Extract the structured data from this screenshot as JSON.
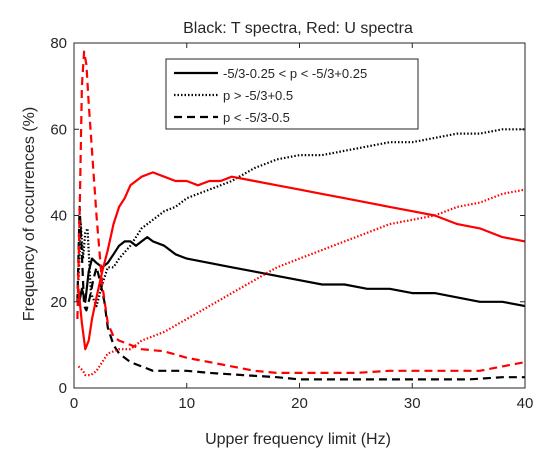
{
  "chart_data": {
    "type": "line",
    "title": "Black: T spectra, Red: U spectra",
    "xlabel": "Upper frequency limit (Hz)",
    "ylabel": "Frequency of occurrences (%)",
    "xlim": [
      0,
      40
    ],
    "ylim": [
      0,
      80
    ],
    "xticks": [
      0,
      10,
      20,
      30,
      40
    ],
    "yticks": [
      0,
      20,
      40,
      60,
      80
    ],
    "grid": false,
    "legend_position": "top-center",
    "legend": [
      {
        "label": "-5/3-0.25 < p < -5/3+0.25",
        "style": "solid"
      },
      {
        "label": "p > -5/3+0.5",
        "style": "dotted"
      },
      {
        "label": "p < -5/3-0.5",
        "style": "dashed"
      }
    ],
    "series": [
      {
        "color": "#000000",
        "style": "solid",
        "points": [
          [
            0.4,
            19
          ],
          [
            0.7,
            23
          ],
          [
            1,
            20
          ],
          [
            1.3,
            27
          ],
          [
            1.6,
            30
          ],
          [
            2,
            29
          ],
          [
            2.5,
            28
          ],
          [
            3,
            29
          ],
          [
            3.5,
            31
          ],
          [
            4,
            33
          ],
          [
            4.5,
            34
          ],
          [
            5,
            34
          ],
          [
            5.5,
            33
          ],
          [
            6,
            34
          ],
          [
            6.5,
            35
          ],
          [
            7,
            34
          ],
          [
            8,
            33
          ],
          [
            9,
            31
          ],
          [
            10,
            30
          ],
          [
            12,
            29
          ],
          [
            14,
            28
          ],
          [
            16,
            27
          ],
          [
            18,
            26
          ],
          [
            20,
            25
          ],
          [
            22,
            24
          ],
          [
            24,
            24
          ],
          [
            26,
            23
          ],
          [
            28,
            23
          ],
          [
            30,
            22
          ],
          [
            32,
            22
          ],
          [
            34,
            21
          ],
          [
            36,
            20
          ],
          [
            38,
            20
          ],
          [
            40,
            19
          ]
        ]
      },
      {
        "color": "#000000",
        "style": "dotted",
        "points": [
          [
            0.4,
            25
          ],
          [
            0.6,
            38
          ],
          [
            0.8,
            30
          ],
          [
            1,
            36
          ],
          [
            1.2,
            37
          ],
          [
            1.5,
            22
          ],
          [
            2,
            19
          ],
          [
            2.5,
            24
          ],
          [
            3,
            28
          ],
          [
            3.5,
            28
          ],
          [
            4,
            30
          ],
          [
            5,
            33
          ],
          [
            6,
            37
          ],
          [
            7,
            39
          ],
          [
            8,
            41
          ],
          [
            9,
            42
          ],
          [
            10,
            44
          ],
          [
            11,
            45
          ],
          [
            12,
            46
          ],
          [
            14,
            48
          ],
          [
            16,
            51
          ],
          [
            18,
            53
          ],
          [
            20,
            54
          ],
          [
            22,
            54
          ],
          [
            24,
            55
          ],
          [
            26,
            56
          ],
          [
            28,
            57
          ],
          [
            30,
            57
          ],
          [
            32,
            58
          ],
          [
            34,
            59
          ],
          [
            36,
            59
          ],
          [
            38,
            60
          ],
          [
            40,
            60
          ]
        ]
      },
      {
        "color": "#000000",
        "style": "dashed",
        "points": [
          [
            0.3,
            20
          ],
          [
            0.5,
            42
          ],
          [
            0.7,
            31
          ],
          [
            0.9,
            19
          ],
          [
            1.1,
            18
          ],
          [
            1.4,
            21
          ],
          [
            1.7,
            25
          ],
          [
            2,
            28
          ],
          [
            2.3,
            25
          ],
          [
            2.7,
            20
          ],
          [
            3,
            14
          ],
          [
            3.5,
            10
          ],
          [
            4,
            8
          ],
          [
            5,
            6
          ],
          [
            6,
            5
          ],
          [
            7,
            4
          ],
          [
            8,
            4
          ],
          [
            10,
            4
          ],
          [
            12,
            3.5
          ],
          [
            15,
            3
          ],
          [
            18,
            2.5
          ],
          [
            20,
            2
          ],
          [
            25,
            2
          ],
          [
            30,
            2
          ],
          [
            35,
            2
          ],
          [
            38,
            2.5
          ],
          [
            40,
            2.5
          ]
        ]
      },
      {
        "color": "#ff0000",
        "style": "solid",
        "points": [
          [
            0.4,
            23
          ],
          [
            0.7,
            15
          ],
          [
            1,
            9
          ],
          [
            1.3,
            11
          ],
          [
            1.6,
            16
          ],
          [
            2,
            21
          ],
          [
            2.5,
            27
          ],
          [
            3,
            32
          ],
          [
            3.5,
            38
          ],
          [
            4,
            42
          ],
          [
            4.5,
            44
          ],
          [
            5,
            47
          ],
          [
            6,
            49
          ],
          [
            7,
            50
          ],
          [
            8,
            49
          ],
          [
            9,
            48
          ],
          [
            10,
            48
          ],
          [
            11,
            47
          ],
          [
            12,
            48
          ],
          [
            13,
            48
          ],
          [
            14,
            49
          ],
          [
            16,
            48
          ],
          [
            18,
            47
          ],
          [
            20,
            46
          ],
          [
            22,
            45
          ],
          [
            24,
            44
          ],
          [
            26,
            43
          ],
          [
            28,
            42
          ],
          [
            30,
            41
          ],
          [
            32,
            40
          ],
          [
            34,
            38
          ],
          [
            36,
            37
          ],
          [
            38,
            35
          ],
          [
            40,
            34
          ]
        ]
      },
      {
        "color": "#ff0000",
        "style": "dotted",
        "points": [
          [
            0.4,
            5
          ],
          [
            0.8,
            4
          ],
          [
            1,
            3
          ],
          [
            1.5,
            3
          ],
          [
            2,
            4
          ],
          [
            2.5,
            6
          ],
          [
            3,
            8
          ],
          [
            4,
            9
          ],
          [
            5,
            9
          ],
          [
            6,
            11
          ],
          [
            7,
            12
          ],
          [
            8,
            13
          ],
          [
            10,
            16
          ],
          [
            12,
            19
          ],
          [
            14,
            22
          ],
          [
            16,
            25
          ],
          [
            18,
            28
          ],
          [
            20,
            30
          ],
          [
            22,
            32
          ],
          [
            24,
            34
          ],
          [
            26,
            36
          ],
          [
            28,
            38
          ],
          [
            30,
            39
          ],
          [
            32,
            40
          ],
          [
            34,
            42
          ],
          [
            36,
            43
          ],
          [
            38,
            45
          ],
          [
            40,
            46
          ]
        ]
      },
      {
        "color": "#ff0000",
        "style": "dashed",
        "points": [
          [
            0.3,
            16
          ],
          [
            0.5,
            40
          ],
          [
            0.7,
            70
          ],
          [
            0.9,
            78
          ],
          [
            1.1,
            75
          ],
          [
            1.3,
            66
          ],
          [
            1.6,
            55
          ],
          [
            2,
            40
          ],
          [
            2.5,
            24
          ],
          [
            3,
            15
          ],
          [
            3.5,
            12
          ],
          [
            4,
            11
          ],
          [
            5,
            10
          ],
          [
            6,
            9
          ],
          [
            8,
            8.5
          ],
          [
            10,
            7
          ],
          [
            12,
            6
          ],
          [
            14,
            5
          ],
          [
            16,
            4
          ],
          [
            18,
            3.5
          ],
          [
            20,
            3.5
          ],
          [
            22,
            3.5
          ],
          [
            25,
            3.5
          ],
          [
            28,
            4
          ],
          [
            30,
            4
          ],
          [
            33,
            4
          ],
          [
            36,
            4
          ],
          [
            38,
            5
          ],
          [
            40,
            6
          ]
        ]
      }
    ]
  }
}
